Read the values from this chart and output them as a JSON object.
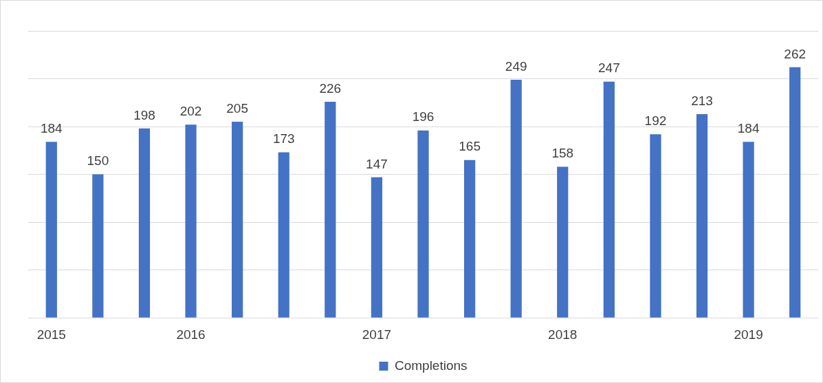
{
  "chart_data": {
    "type": "bar",
    "categories": [
      "2015",
      null,
      null,
      "2016",
      null,
      null,
      null,
      "2017",
      null,
      null,
      null,
      "2018",
      null,
      null,
      null,
      "2019",
      null
    ],
    "series": [
      {
        "name": "Completions",
        "color": "#4472c4",
        "values": [
          184,
          150,
          198,
          202,
          205,
          173,
          226,
          147,
          196,
          165,
          249,
          158,
          247,
          192,
          213,
          184,
          262
        ]
      }
    ],
    "ylim": [
      0,
      300
    ],
    "yticks": [
      {
        "value": 0,
        "label": null
      },
      {
        "value": 50,
        "label": null
      },
      {
        "value": 100,
        "label": null
      },
      {
        "value": 150,
        "label": null
      },
      {
        "value": 200,
        "label": null
      },
      {
        "value": 250,
        "label": null
      },
      {
        "value": 300,
        "label": null
      }
    ],
    "tick_labels": "x",
    "grid": "y",
    "data_labels": true,
    "legend": "bottom"
  }
}
